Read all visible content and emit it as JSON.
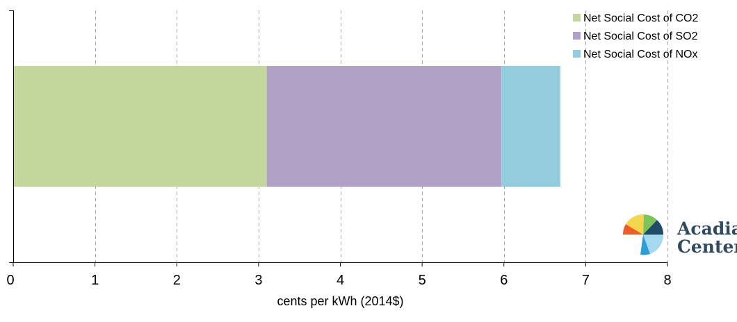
{
  "chart_data": {
    "type": "bar",
    "orientation": "horizontal",
    "stacked": true,
    "categories": [
      ""
    ],
    "series": [
      {
        "name": "Net Social Cost of CO2",
        "values": [
          3.1
        ],
        "color": "#c3d69b"
      },
      {
        "name": "Net Social Cost of SO2",
        "values": [
          2.87
        ],
        "color": "#b1a0c7"
      },
      {
        "name": "Net Social Cost of NOx",
        "values": [
          0.72
        ],
        "color": "#93cddd"
      }
    ],
    "title": "",
    "xlabel": "cents per kWh (2014$)",
    "ylabel": "",
    "xlim": [
      0,
      8
    ],
    "xticks": [
      "0",
      "1",
      "2",
      "3",
      "4",
      "5",
      "6",
      "7",
      "8"
    ],
    "grid": "vertical-dashed",
    "legend_position": "top-right"
  },
  "logo": {
    "line1": "Acadia",
    "line2": "Center"
  }
}
